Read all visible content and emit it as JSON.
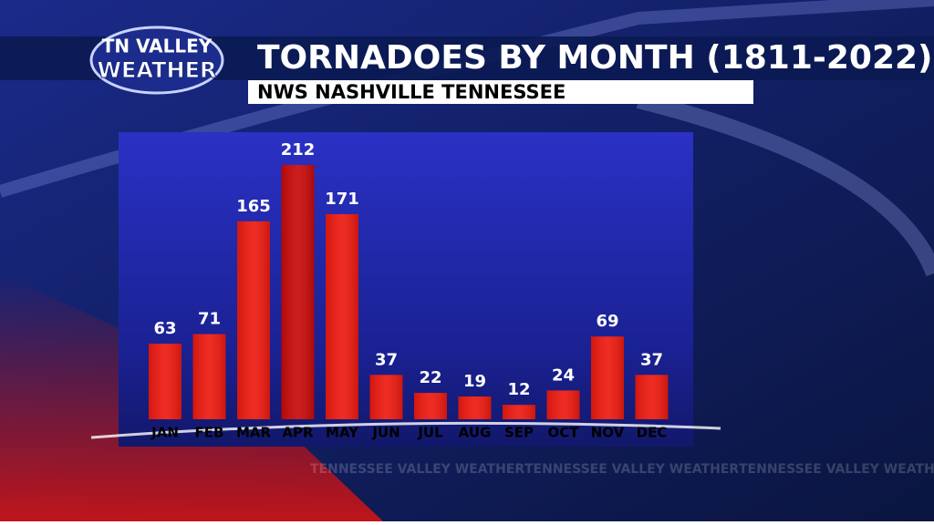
{
  "logo": {
    "line1": "TN VALLEY",
    "line2": "WEATHER"
  },
  "watermark": "TENNESSEE VALLEY WEATHER",
  "chart_data": {
    "type": "bar",
    "title": "TORNADOES BY MONTH (1811-2022)",
    "subtitle": "NWS NASHVILLE TENNESSEE",
    "categories": [
      "JAN",
      "FEB",
      "MAR",
      "APR",
      "MAY",
      "JUN",
      "JUL",
      "AUG",
      "SEP",
      "OCT",
      "NOV",
      "DEC"
    ],
    "values": [
      63,
      71,
      165,
      212,
      171,
      37,
      22,
      19,
      12,
      24,
      69,
      37
    ],
    "colors": [
      "#ee1a10",
      "#ee1a10",
      "#ee1a10",
      "#c80a0a",
      "#ee1a10",
      "#ee1a10",
      "#ee1a10",
      "#ee1a10",
      "#ee1a10",
      "#ee1a10",
      "#ee1a10",
      "#ee1a10"
    ]
  }
}
